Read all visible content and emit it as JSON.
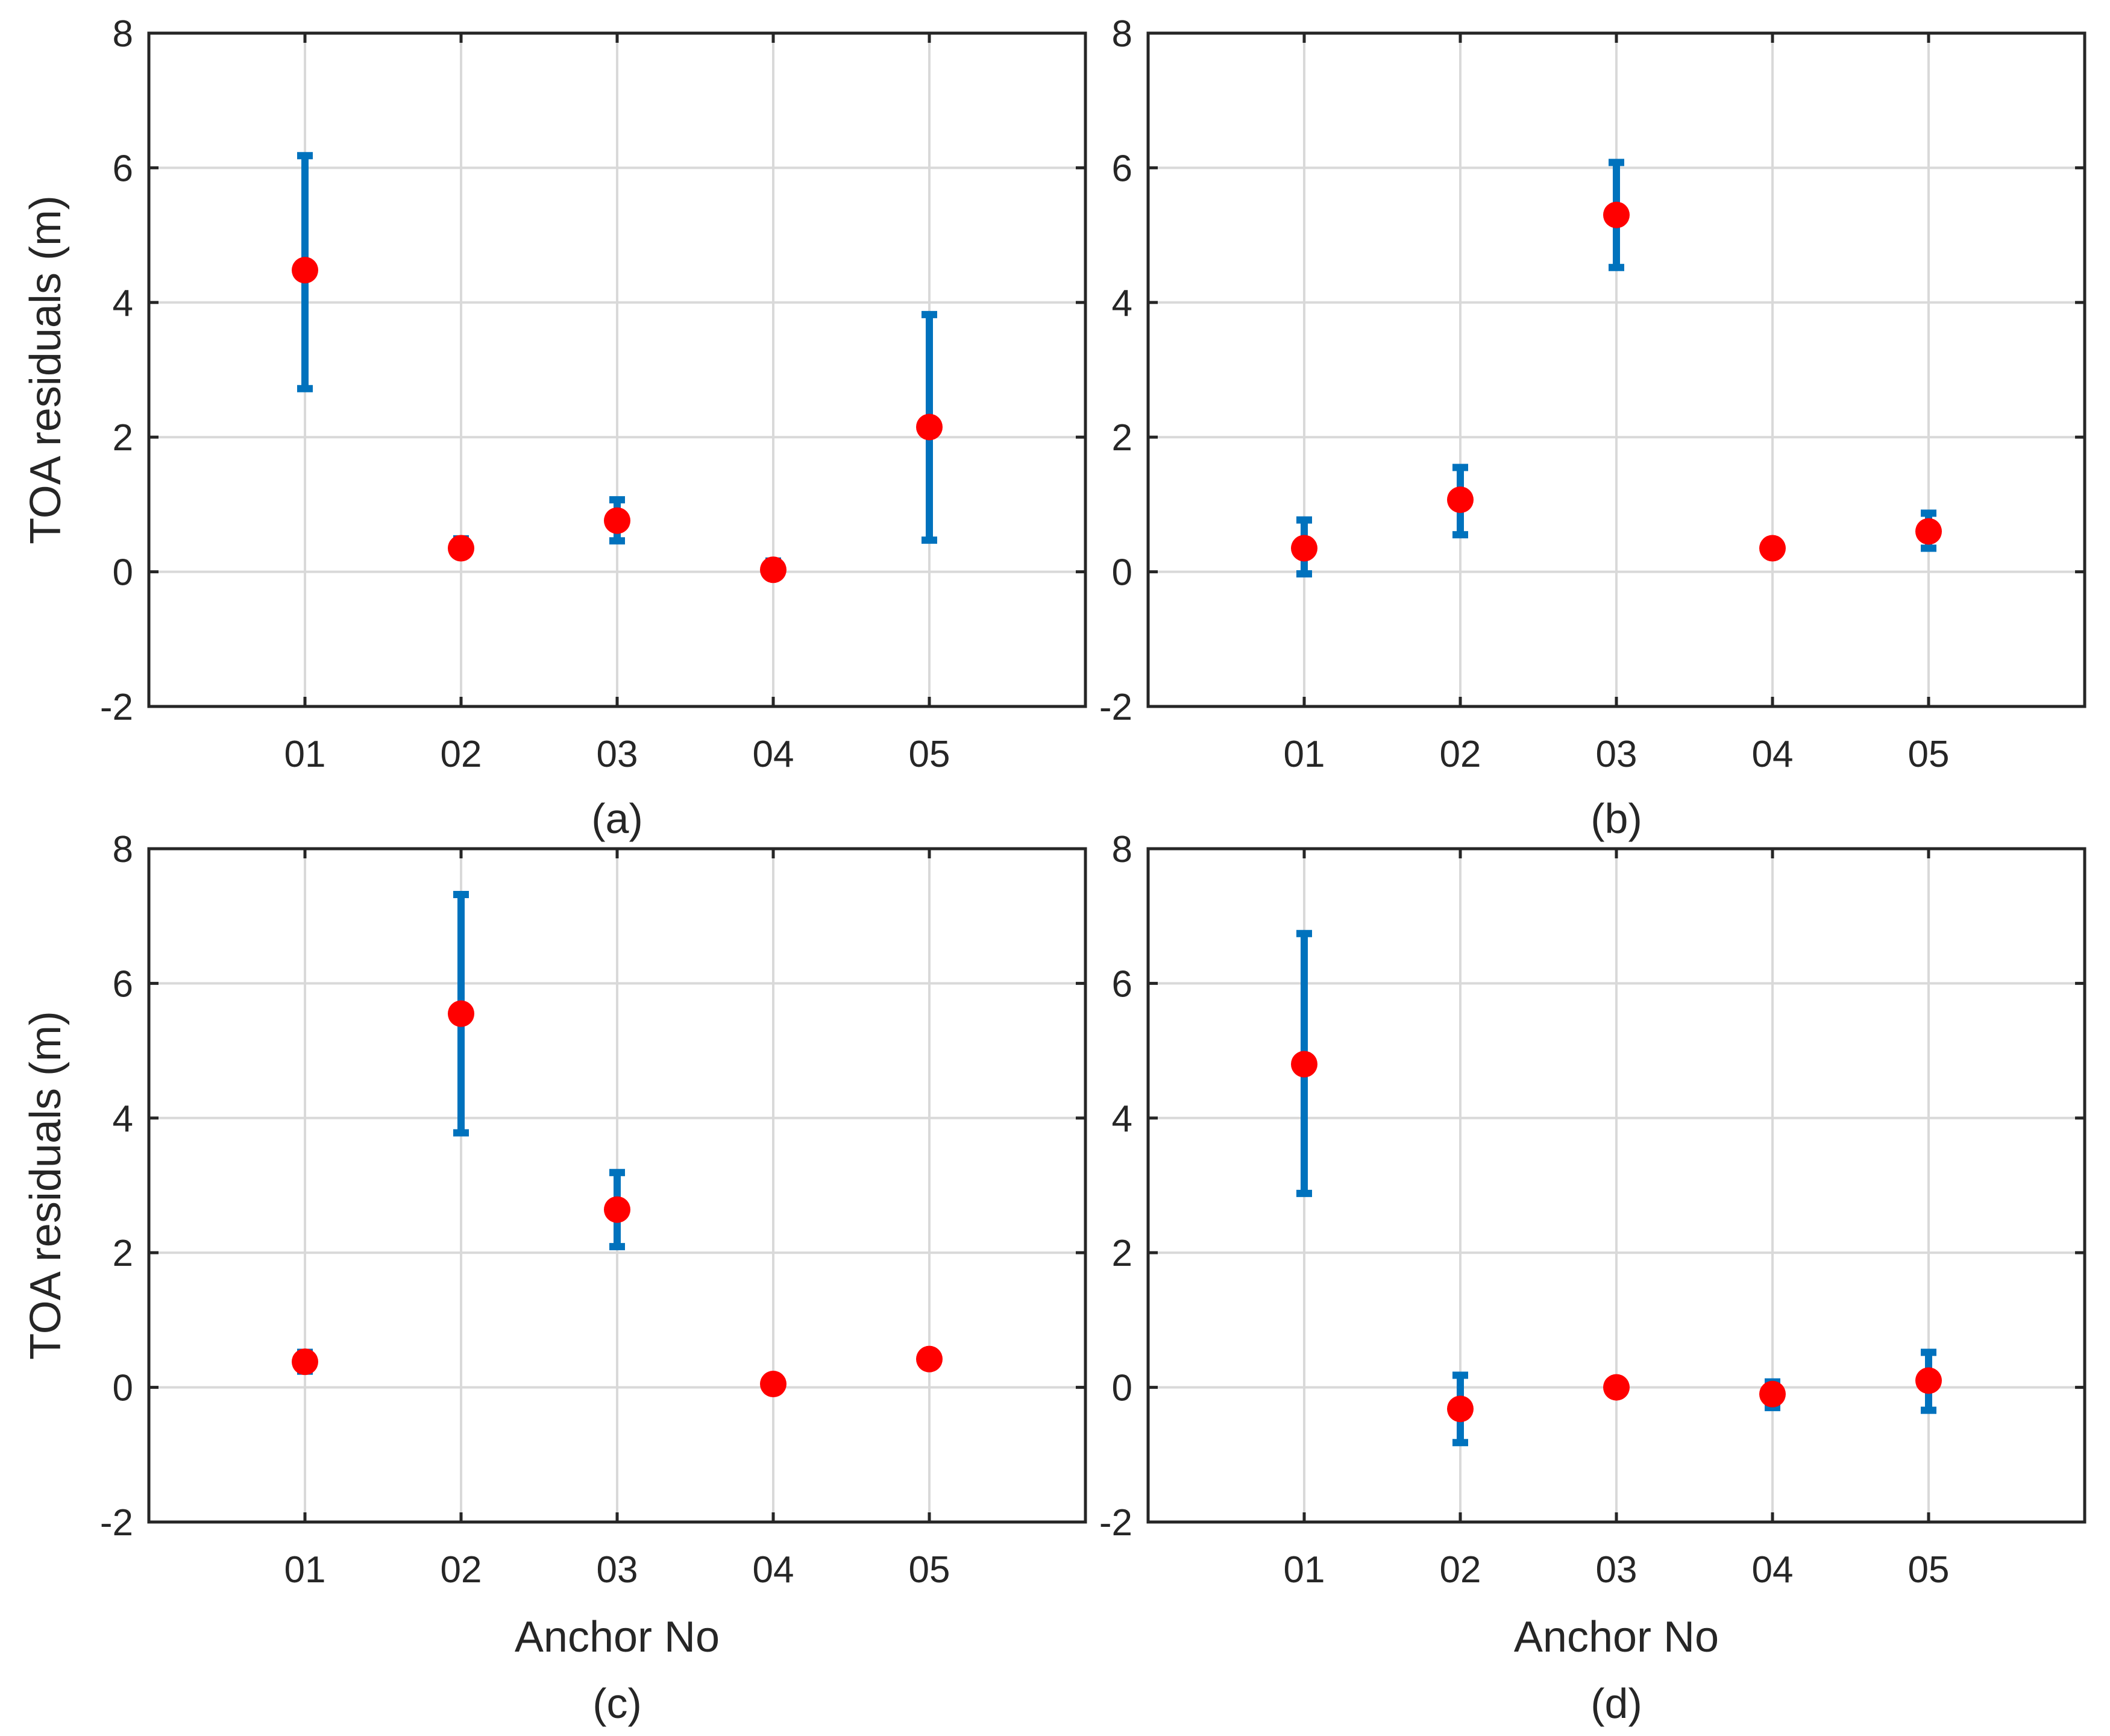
{
  "colors": {
    "errorbar": "#0072bd",
    "marker": "#ff0000",
    "grid": "#d9d9d9",
    "axis": "#262626"
  },
  "chart_data": [
    {
      "type": "scatter",
      "panel": "(a)",
      "title": "",
      "xlabel": "",
      "ylabel": "TOA residuals (m)",
      "categories": [
        "01",
        "02",
        "03",
        "04",
        "05"
      ],
      "yticks": [
        "-2",
        "0",
        "2",
        "4",
        "6",
        "8"
      ],
      "ylim": [
        -2,
        8
      ],
      "grid": true,
      "series": [
        {
          "name": "mean",
          "values": [
            4.48,
            0.35,
            0.76,
            0.03,
            2.15
          ]
        },
        {
          "name": "error_low",
          "values": [
            2.72,
            0.27,
            0.46,
            -0.07,
            0.47
          ]
        },
        {
          "name": "error_high",
          "values": [
            6.18,
            0.49,
            1.07,
            0.16,
            3.82
          ]
        }
      ]
    },
    {
      "type": "scatter",
      "panel": "(b)",
      "title": "",
      "xlabel": "",
      "ylabel": "",
      "categories": [
        "01",
        "02",
        "03",
        "04",
        "05"
      ],
      "yticks": [
        "-2",
        "0",
        "2",
        "4",
        "6",
        "8"
      ],
      "ylim": [
        -2,
        8
      ],
      "grid": true,
      "series": [
        {
          "name": "mean",
          "values": [
            0.35,
            1.07,
            5.3,
            0.35,
            0.6
          ]
        },
        {
          "name": "error_low",
          "values": [
            -0.03,
            0.55,
            4.52,
            0.28,
            0.35
          ]
        },
        {
          "name": "error_high",
          "values": [
            0.77,
            1.55,
            6.08,
            0.41,
            0.87
          ]
        }
      ]
    },
    {
      "type": "scatter",
      "panel": "(c)",
      "title": "",
      "xlabel": "Anchor No",
      "ylabel": "TOA residuals (m)",
      "categories": [
        "01",
        "02",
        "03",
        "04",
        "05"
      ],
      "yticks": [
        "-2",
        "0",
        "2",
        "4",
        "6",
        "8"
      ],
      "ylim": [
        -2,
        8
      ],
      "grid": true,
      "series": [
        {
          "name": "mean",
          "values": [
            0.38,
            5.55,
            2.64,
            0.05,
            0.42
          ]
        },
        {
          "name": "error_low",
          "values": [
            0.24,
            3.78,
            2.09,
            0.02,
            0.37
          ]
        },
        {
          "name": "error_high",
          "values": [
            0.52,
            7.32,
            3.19,
            0.08,
            0.47
          ]
        }
      ]
    },
    {
      "type": "scatter",
      "panel": "(d)",
      "title": "",
      "xlabel": "Anchor No",
      "ylabel": "",
      "categories": [
        "01",
        "02",
        "03",
        "04",
        "05"
      ],
      "yticks": [
        "-2",
        "0",
        "2",
        "4",
        "6",
        "8"
      ],
      "ylim": [
        -2,
        8
      ],
      "grid": true,
      "series": [
        {
          "name": "mean",
          "values": [
            4.8,
            -0.32,
            0.0,
            -0.1,
            0.1
          ]
        },
        {
          "name": "error_low",
          "values": [
            2.88,
            -0.82,
            -0.03,
            -0.3,
            -0.34
          ]
        },
        {
          "name": "error_high",
          "values": [
            6.74,
            0.18,
            0.03,
            0.08,
            0.52
          ]
        }
      ]
    }
  ]
}
